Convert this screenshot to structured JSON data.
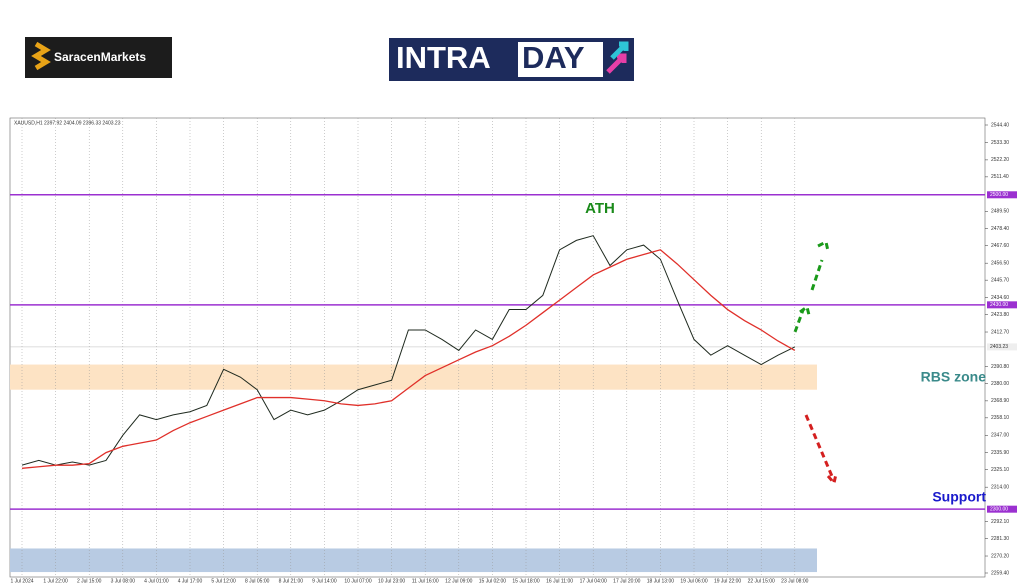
{
  "brand": {
    "logo": "SaracenMarkets",
    "banner": [
      "INTRA",
      "DAY"
    ]
  },
  "chart_data": {
    "type": "line",
    "header": "XAUUSD,H1 2397.92 2404.09 2396.33 2403.23",
    "categories": [
      "1 Jul 2024",
      null,
      "1 Jul 22:00",
      null,
      "2 Jul 15:00",
      null,
      "3 Jul 08:00",
      null,
      "4 Jul 01:00",
      null,
      "4 Jul 17:00",
      null,
      "5 Jul 12:00",
      null,
      "8 Jul 05:00",
      null,
      "8 Jul 21:00",
      null,
      "9 Jul 14:00",
      null,
      "10 Jul 07:00",
      null,
      "10 Jul 23:00",
      null,
      "11 Jul 16:00",
      null,
      "12 Jul 09:00",
      null,
      "15 Jul 02:00",
      null,
      "15 Jul 18:00",
      null,
      "16 Jul 11:00",
      null,
      "17 Jul 04:00",
      null,
      "17 Jul 20:00",
      null,
      "18 Jul 13:00",
      null,
      "19 Jul 06:00",
      null,
      "19 Jul 22:00",
      null,
      "22 Jul 15:00",
      null,
      "23 Jul 08:00"
    ],
    "series": [
      {
        "name": "XAUUSD",
        "color": "#1f2a1f",
        "values": [
          2328,
          2331,
          2328,
          2330,
          2328,
          2331,
          2347,
          2360,
          2357,
          2360,
          2362,
          2366,
          2389,
          2384,
          2376,
          2357,
          2363,
          2360,
          2363,
          2369,
          2376,
          2379,
          2382,
          2414,
          2414,
          2408,
          2401,
          2414,
          2408,
          2427,
          2427,
          2436,
          2465,
          2471,
          2474,
          2455,
          2465,
          2468,
          2459,
          2433,
          2408,
          2398,
          2404,
          2398,
          2392,
          2398,
          2403.23
        ]
      },
      {
        "name": "MA",
        "color": "#e0302a",
        "values": [
          2326,
          2327,
          2328,
          2328,
          2329,
          2336,
          2340,
          2342,
          2344,
          2350,
          2355,
          2359,
          2363,
          2367,
          2371,
          2371,
          2371,
          2370,
          2369,
          2367,
          2366,
          2367,
          2369,
          2377,
          2385,
          2390,
          2395,
          2400,
          2404,
          2410,
          2417,
          2425,
          2433,
          2441,
          2449,
          2454,
          2459,
          2462,
          2465,
          2456,
          2446,
          2436,
          2427,
          2420,
          2414,
          2407,
          2401
        ]
      }
    ],
    "ylim": [
      2259.4,
      2544.4
    ],
    "yticks": [
      {
        "value": 2544.4,
        "label": "2544.40"
      },
      {
        "value": 2533.3,
        "label": "2533.30"
      },
      {
        "value": 2522.2,
        "label": "2522.20"
      },
      {
        "value": 2511.4,
        "label": "2511.40"
      },
      {
        "value": 2489.5,
        "label": "2489.50"
      },
      {
        "value": 2478.4,
        "label": "2478.40"
      },
      {
        "value": 2467.6,
        "label": "2467.60"
      },
      {
        "value": 2456.5,
        "label": "2456.50"
      },
      {
        "value": 2445.7,
        "label": "2445.70"
      },
      {
        "value": 2434.6,
        "label": "2434.60"
      },
      {
        "value": 2423.8,
        "label": "2423.80"
      },
      {
        "value": 2412.7,
        "label": "2412.70"
      },
      {
        "value": 2390.8,
        "label": "2390.80"
      },
      {
        "value": 2380,
        "label": "2380.00"
      },
      {
        "value": 2368.9,
        "label": "2368.90"
      },
      {
        "value": 2358.1,
        "label": "2358.10"
      },
      {
        "value": 2347,
        "label": "2347.00"
      },
      {
        "value": 2335.9,
        "label": "2335.90"
      },
      {
        "value": 2325.1,
        "label": "2325.10"
      },
      {
        "value": 2314,
        "label": "2314.00"
      },
      {
        "value": 2292.1,
        "label": "2292.10"
      },
      {
        "value": 2281.3,
        "label": "2281.30"
      },
      {
        "value": 2270.2,
        "label": "2270.20"
      },
      {
        "value": 2259.4,
        "label": "2259.40"
      }
    ],
    "levels": [
      {
        "value": 2500,
        "label": "2500.00"
      },
      {
        "value": 2430,
        "label": "2430.00"
      },
      {
        "value": 2300,
        "label": "2300.00"
      }
    ],
    "level_color": "#9b30d0",
    "price_label": {
      "value": 2403.23,
      "label": "2403.23"
    },
    "zones": [
      {
        "from": 2376,
        "to": 2392,
        "color": "#fde3c4"
      },
      {
        "from": 2260,
        "to": 2275,
        "color": "#b8cbe3"
      }
    ],
    "annotations": [
      "ATH",
      "RBS zone",
      "Support"
    ],
    "grid": true
  }
}
